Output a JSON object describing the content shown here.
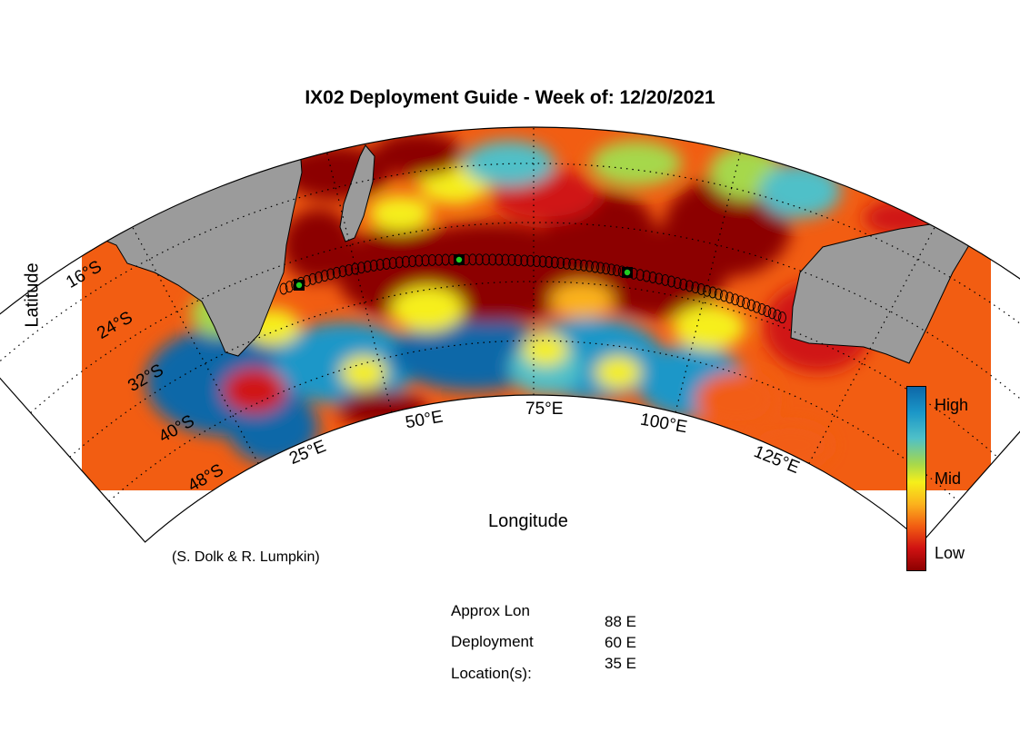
{
  "title": "IX02 Deployment Guide - Week of: 12/20/2021",
  "axes": {
    "ylabel": "Latitude",
    "xlabel": "Longitude",
    "lat_ticks": [
      "16°S",
      "24°S",
      "32°S",
      "40°S",
      "48°S"
    ],
    "lon_ticks": [
      "25°E",
      "50°E",
      "75°E",
      "100°E",
      "125°E"
    ]
  },
  "colorbar": {
    "labels": [
      "High",
      "Mid",
      "Low"
    ],
    "colors": [
      "#0d67a8",
      "#1b97c8",
      "#4fc0c8",
      "#a6d84c",
      "#f6ef1a",
      "#fbb21d",
      "#f25d12",
      "#d01212",
      "#8c0000"
    ]
  },
  "credit": "(S. Dolk & R. Lumpkin)",
  "deployment": {
    "label_lines": [
      "Approx Lon",
      "Deployment",
      "Location(s):"
    ],
    "locations": [
      "88 E",
      "60 E",
      "35 E"
    ]
  },
  "colors": {
    "land": "#9b9b9b",
    "ocean_high": "#0d67a8",
    "ocean_low": "#8c0000",
    "marker": "#22cc22"
  }
}
